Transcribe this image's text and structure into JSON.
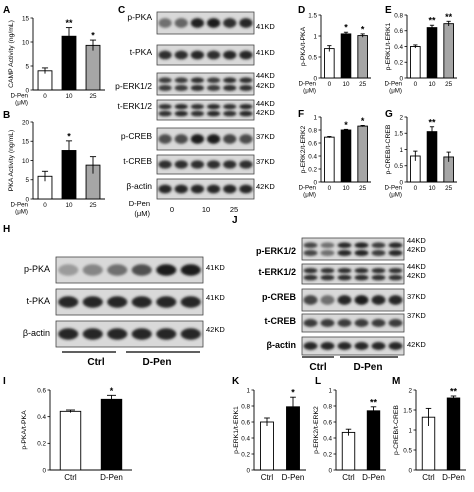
{
  "panel_letters": [
    "A",
    "B",
    "C",
    "D",
    "E",
    "F",
    "G",
    "H",
    "I",
    "J",
    "K",
    "L",
    "M"
  ],
  "dose": {
    "row_label": "D-Pen",
    "unit": "(μM)",
    "unit_blot": "(μM)",
    "levels": [
      "0",
      "10",
      "25"
    ]
  },
  "groups": [
    "Ctrl",
    "D-Pen"
  ],
  "blots": {
    "C": {
      "rows": [
        {
          "label": "p-PKA",
          "kd": [
            "41KD"
          ]
        },
        {
          "label": "t-PKA",
          "kd": [
            "41KD"
          ]
        },
        {
          "label": "p-ERK1/2",
          "kd": [
            "44KD",
            "42KD"
          ]
        },
        {
          "label": "t-ERK1/2",
          "kd": [
            "44KD",
            "42KD"
          ]
        },
        {
          "label": "p-CREB",
          "kd": [
            "37KD"
          ]
        },
        {
          "label": "t-CREB",
          "kd": [
            "37KD"
          ]
        },
        {
          "label": "β-actin",
          "kd": [
            "42KD"
          ]
        }
      ]
    },
    "H": {
      "rows": [
        {
          "label": "p-PKA",
          "kd": [
            "41KD"
          ]
        },
        {
          "label": "t-PKA",
          "kd": [
            "41KD"
          ]
        },
        {
          "label": "β-actin",
          "kd": [
            "42KD"
          ]
        }
      ]
    },
    "J": {
      "rows": [
        {
          "label": "p-ERK1/2",
          "kd": [
            "44KD",
            "42KD"
          ]
        },
        {
          "label": "t-ERK1/2",
          "kd": [
            "44KD",
            "42KD"
          ]
        },
        {
          "label": "p-CREB",
          "kd": [
            "37KD"
          ]
        },
        {
          "label": "t-CREB",
          "kd": [
            "37KD"
          ]
        },
        {
          "label": "β-actin",
          "kd": [
            "42KD"
          ]
        }
      ]
    }
  },
  "chart_data": [
    {
      "panel": "A",
      "type": "bar",
      "ylabel": "CAMP Activity (ng/mL)",
      "categories": [
        "0",
        "10",
        "25"
      ],
      "values": [
        4.0,
        11.2,
        9.3
      ],
      "errors": [
        0.6,
        1.8,
        1.1
      ],
      "significance": [
        "",
        "**",
        "*"
      ],
      "ylim": [
        0,
        15
      ],
      "yticks": [
        0,
        5,
        10,
        15
      ],
      "colors": [
        "#ffffff",
        "#000000",
        "#a6a6a6"
      ]
    },
    {
      "panel": "B",
      "type": "bar",
      "ylabel": "PKA Activity (ng/mL)",
      "categories": [
        "0",
        "10",
        "25"
      ],
      "values": [
        5.9,
        12.6,
        8.8
      ],
      "errors": [
        1.3,
        2.5,
        2.2
      ],
      "significance": [
        "",
        "*",
        ""
      ],
      "ylim": [
        0,
        20
      ],
      "yticks": [
        0,
        5,
        10,
        15,
        20
      ],
      "colors": [
        "#ffffff",
        "#000000",
        "#a6a6a6"
      ]
    },
    {
      "panel": "D",
      "type": "bar",
      "ylabel": "p-PKA/t-PKA",
      "categories": [
        "0",
        "10",
        "25"
      ],
      "values": [
        0.7,
        1.05,
        1.01
      ],
      "errors": [
        0.07,
        0.04,
        0.04
      ],
      "significance": [
        "",
        "*",
        "*"
      ],
      "ylim": [
        0,
        1.5
      ],
      "yticks": [
        0,
        0.5,
        1.0,
        1.5
      ],
      "colors": [
        "#ffffff",
        "#000000",
        "#a6a6a6"
      ]
    },
    {
      "panel": "E",
      "type": "bar",
      "ylabel": "p-ERK1/t-ERK1",
      "categories": [
        "0",
        "10",
        "25"
      ],
      "values": [
        0.4,
        0.64,
        0.69
      ],
      "errors": [
        0.02,
        0.03,
        0.03
      ],
      "significance": [
        "",
        "**",
        "**"
      ],
      "ylim": [
        0,
        0.8
      ],
      "yticks": [
        0,
        0.2,
        0.4,
        0.6,
        0.8
      ],
      "colors": [
        "#ffffff",
        "#000000",
        "#a6a6a6"
      ]
    },
    {
      "panel": "F",
      "type": "bar",
      "ylabel": "p-ERK2/t-ERK2",
      "categories": [
        "0",
        "10",
        "25"
      ],
      "values": [
        0.69,
        0.8,
        0.86
      ],
      "errors": [
        0.01,
        0.01,
        0.01
      ],
      "significance": [
        "",
        "*",
        "*"
      ],
      "ylim": [
        0,
        1.0
      ],
      "yticks": [
        0,
        0.2,
        0.4,
        0.6,
        0.8,
        1.0
      ],
      "colors": [
        "#ffffff",
        "#000000",
        "#a6a6a6"
      ]
    },
    {
      "panel": "G",
      "type": "bar",
      "ylabel": "p-CREB/t-CREB",
      "categories": [
        "0",
        "10",
        "25"
      ],
      "values": [
        0.8,
        1.55,
        0.77
      ],
      "errors": [
        0.15,
        0.15,
        0.15
      ],
      "significance": [
        "",
        "**",
        ""
      ],
      "ylim": [
        0,
        2.0
      ],
      "yticks": [
        0,
        0.5,
        1.0,
        1.5,
        2.0
      ],
      "colors": [
        "#ffffff",
        "#000000",
        "#a6a6a6"
      ]
    },
    {
      "panel": "I",
      "type": "bar",
      "ylabel": "p-PKA/t-PKA",
      "categories": [
        "Ctrl",
        "D-Pen"
      ],
      "values": [
        0.44,
        0.53
      ],
      "errors": [
        0.01,
        0.03
      ],
      "significance": [
        "",
        "*"
      ],
      "ylim": [
        0,
        0.6
      ],
      "yticks": [
        0,
        0.2,
        0.4,
        0.6
      ],
      "colors": [
        "#ffffff",
        "#000000"
      ]
    },
    {
      "panel": "K",
      "type": "bar",
      "ylabel": "p-ERK1/t-ERK1",
      "categories": [
        "Ctrl",
        "D-Pen"
      ],
      "values": [
        0.6,
        0.79
      ],
      "errors": [
        0.05,
        0.12
      ],
      "significance": [
        "",
        "*"
      ],
      "ylim": [
        0,
        1.0
      ],
      "yticks": [
        0,
        0.2,
        0.4,
        0.6,
        0.8,
        1.0
      ],
      "colors": [
        "#ffffff",
        "#000000"
      ]
    },
    {
      "panel": "L",
      "type": "bar",
      "ylabel": "p-ERK2/t-ERK2",
      "categories": [
        "Ctrl",
        "D-Pen"
      ],
      "values": [
        0.47,
        0.74
      ],
      "errors": [
        0.04,
        0.05
      ],
      "significance": [
        "",
        "**"
      ],
      "ylim": [
        0,
        1.0
      ],
      "yticks": [
        0,
        0.2,
        0.4,
        0.6,
        0.8,
        1.0
      ],
      "colors": [
        "#ffffff",
        "#000000"
      ]
    },
    {
      "panel": "M",
      "type": "bar",
      "ylabel": "p-CREB/t-CREB",
      "categories": [
        "Ctrl",
        "D-Pen"
      ],
      "values": [
        1.32,
        1.8
      ],
      "errors": [
        0.22,
        0.05
      ],
      "significance": [
        "",
        "**"
      ],
      "ylim": [
        0,
        2.0
      ],
      "yticks": [
        0,
        0.5,
        1.0,
        1.5,
        2.0
      ],
      "colors": [
        "#ffffff",
        "#000000"
      ]
    }
  ]
}
